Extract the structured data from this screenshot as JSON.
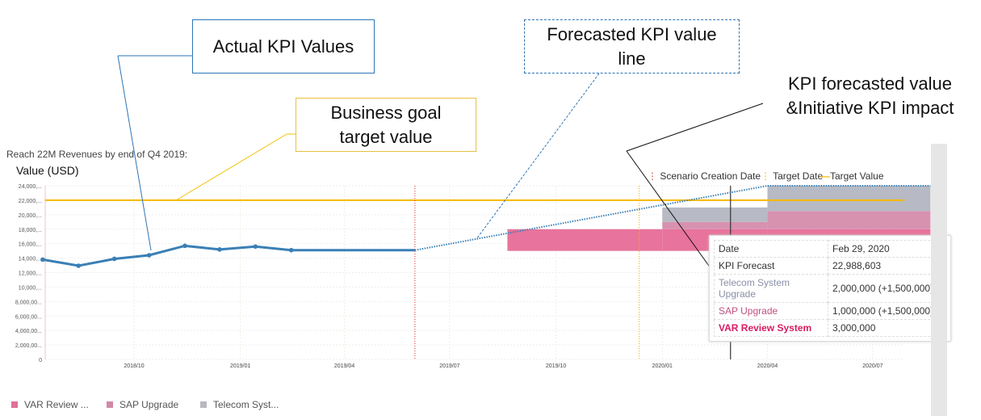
{
  "chart_data": {
    "type": "line",
    "title": "Reach 22M Revenues by end of Q4 2019:",
    "ylabel": "Value (USD)",
    "ylim": [
      0,
      24000000
    ],
    "yticks": [
      "0",
      "2,000,00...",
      "4,000,00...",
      "6,000,00...",
      "8,000,00...",
      "10,000,...",
      "12,000,...",
      "14,000,...",
      "16,000,...",
      "18,000,...",
      "20,000,...",
      "22,000,...",
      "24,000,..."
    ],
    "xticks": [
      {
        "label": "2018/10",
        "date": "2018-10-01"
      },
      {
        "label": "2019/01",
        "date": "2019-01-01"
      },
      {
        "label": "2019/04",
        "date": "2019-04-01"
      },
      {
        "label": "2019/07",
        "date": "2019-07-01"
      },
      {
        "label": "2019/10",
        "date": "2019-10-01"
      },
      {
        "label": "2020/01",
        "date": "2020-01-01"
      },
      {
        "label": "2020/04",
        "date": "2020-04-01"
      },
      {
        "label": "2020/07",
        "date": "2020-07-01"
      }
    ],
    "xrange": [
      "2018-07-14",
      "2020-08-20"
    ],
    "target_value": 22000000,
    "scenario_creation_date": "2019-06-01",
    "target_date": "2019-12-12",
    "cursor_date": "2020-02-29",
    "actual": {
      "name": "Actual KPI",
      "dates": [
        "2018-07-14",
        "2018-08-14",
        "2018-09-14",
        "2018-10-14",
        "2018-11-14",
        "2018-12-14",
        "2019-01-14",
        "2019-02-14",
        "2019-06-01"
      ],
      "values": [
        13800000,
        12950000,
        13900000,
        14400000,
        15700000,
        15200000,
        15600000,
        15100000,
        15100000
      ]
    },
    "forecast": {
      "name": "KPI Forecast",
      "dates": [
        "2019-06-01",
        "2020-04-01",
        "2020-08-20"
      ],
      "values": [
        15100000,
        24000000,
        24000000
      ]
    },
    "stacks": [
      {
        "start": "2019-08-20",
        "end": "2020-01-01",
        "var": [
          15000000,
          18000000
        ],
        "sap": [
          18000000,
          18000000
        ],
        "telecom": [
          18000000,
          18000000
        ]
      },
      {
        "start": "2020-01-01",
        "end": "2020-04-01",
        "var": [
          15000000,
          18000000
        ],
        "sap": [
          18000000,
          19000000
        ],
        "telecom": [
          19000000,
          21000000
        ]
      },
      {
        "start": "2020-04-01",
        "end": "2020-08-20",
        "var": [
          15000000,
          18000000
        ],
        "sap": [
          18000000,
          20500000
        ],
        "telecom": [
          20500000,
          24000000
        ]
      }
    ],
    "legend_top": [
      "Scenario Creation Date",
      "Target Date",
      "Target Value"
    ],
    "legend_bottom": [
      {
        "label": "VAR Review ...",
        "color": "#e0709a"
      },
      {
        "label": "SAP Upgrade",
        "color": "#d08aa8"
      },
      {
        "label": "Telecom Syst...",
        "color": "#b8b8c0"
      }
    ],
    "colors": {
      "actual": "#3a7fb5",
      "target": "#f5b800",
      "scenario": "#e04040",
      "var": "#e8739c",
      "sap": "#d792b0",
      "telecom": "#b7bac4"
    }
  },
  "tooltip": {
    "rows": [
      {
        "label": "Date",
        "value": "Feb 29, 2020",
        "color": "#333"
      },
      {
        "label": "KPI Forecast",
        "value": "22,988,603",
        "color": "#333"
      },
      {
        "label": "Telecom System Upgrade",
        "value": "2,000,000 (+1,500,000)",
        "color": "#8a90a8"
      },
      {
        "label": "SAP Upgrade",
        "value": "1,000,000 (+1,500,000)",
        "color": "#c0507e"
      },
      {
        "label": "VAR Review System",
        "value": "3,000,000",
        "color": "#d81b60"
      }
    ]
  },
  "callouts": {
    "actual": "Actual KPI Values",
    "goal": "Business goal target value",
    "forecast": "Forecasted KPI value line",
    "impact": "KPI forecasted value &Initiative KPI impact"
  }
}
